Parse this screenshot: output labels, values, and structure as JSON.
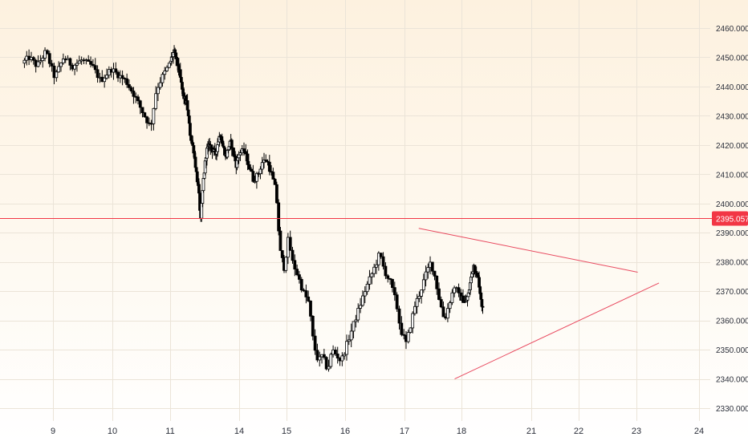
{
  "chart_data": {
    "type": "candlestick",
    "instrument_note": "",
    "y_axis": {
      "range": [
        2325,
        2465
      ],
      "ticks": [
        2330,
        2340,
        2350,
        2360,
        2370,
        2380,
        2390,
        2400,
        2410,
        2420,
        2430,
        2440,
        2450,
        2460
      ],
      "tick_labels": [
        "2330.000",
        "2340.000",
        "2350.000",
        "2360.000",
        "2370.000",
        "2380.000",
        "2390.000",
        "2400.000",
        "2410.000",
        "2420.000",
        "2430.000",
        "2440.000",
        "2450.000",
        "2460.000"
      ]
    },
    "x_axis": {
      "range": [
        8.5,
        24.2
      ],
      "ticks": [
        9,
        10,
        11,
        14,
        15,
        16,
        17,
        18,
        21,
        22,
        23,
        24
      ],
      "tick_labels": [
        "9",
        "10",
        "11",
        "14",
        "15",
        "16",
        "17",
        "18",
        "21",
        "22",
        "23",
        "24"
      ]
    },
    "grid": true,
    "current_price": {
      "value": 2395.057,
      "label": "2395.057",
      "color": "#f23645"
    },
    "candle_colors": {
      "up": "#ffffff",
      "down": "#000000",
      "wick": "#000000"
    },
    "trendlines": [
      {
        "name": "upper",
        "color": "#e8495f",
        "from": {
          "x": 17.25,
          "y": 2391.5
        },
        "to": {
          "x": 23.02,
          "y": 2376.5
        }
      },
      {
        "name": "lower",
        "color": "#e8495f",
        "from": {
          "x": 17.88,
          "y": 2340.0
        },
        "to": {
          "x": 23.36,
          "y": 2372.8
        }
      }
    ],
    "price_path": [
      [
        8.5,
        2448
      ],
      [
        8.62,
        2450
      ],
      [
        8.75,
        2447
      ],
      [
        8.9,
        2452
      ],
      [
        9.05,
        2443
      ],
      [
        9.2,
        2450
      ],
      [
        9.35,
        2447
      ],
      [
        9.5,
        2449
      ],
      [
        9.68,
        2447
      ],
      [
        9.82,
        2442
      ],
      [
        10.0,
        2446
      ],
      [
        10.12,
        2444
      ],
      [
        10.25,
        2442
      ],
      [
        10.4,
        2437
      ],
      [
        10.55,
        2431
      ],
      [
        10.68,
        2426
      ],
      [
        10.78,
        2439
      ],
      [
        10.9,
        2444
      ],
      [
        11.05,
        2449
      ],
      [
        11.18,
        2452
      ],
      [
        11.3,
        2449
      ],
      [
        11.42,
        2445
      ],
      [
        11.58,
        2437
      ],
      [
        11.75,
        2434
      ],
      [
        11.9,
        2423
      ],
      [
        12.05,
        2418
      ],
      [
        12.15,
        2411
      ],
      [
        12.25,
        2405
      ],
      [
        12.35,
        2394
      ],
      [
        12.45,
        2407
      ],
      [
        12.6,
        2418
      ],
      [
        12.75,
        2420
      ],
      [
        12.9,
        2418
      ],
      [
        13.0,
        2417
      ],
      [
        13.1,
        2421
      ],
      [
        13.2,
        2424
      ],
      [
        13.3,
        2420
      ],
      [
        13.45,
        2416
      ],
      [
        13.55,
        2419
      ],
      [
        13.65,
        2421
      ],
      [
        13.78,
        2417
      ],
      [
        13.9,
        2413
      ],
      [
        14.0,
        2417
      ],
      [
        14.12,
        2418
      ],
      [
        14.22,
        2413
      ],
      [
        14.32,
        2408
      ],
      [
        14.42,
        2410
      ],
      [
        14.5,
        2414
      ],
      [
        14.6,
        2415
      ],
      [
        14.7,
        2410
      ],
      [
        14.8,
        2404
      ],
      [
        14.88,
        2384
      ],
      [
        14.97,
        2378
      ],
      [
        15.05,
        2388
      ],
      [
        15.12,
        2380
      ],
      [
        15.2,
        2376
      ],
      [
        15.3,
        2370
      ],
      [
        15.4,
        2366
      ],
      [
        15.48,
        2352
      ],
      [
        15.56,
        2346
      ],
      [
        15.63,
        2348
      ],
      [
        15.72,
        2343
      ],
      [
        15.8,
        2350
      ],
      [
        15.88,
        2348
      ],
      [
        15.95,
        2346
      ],
      [
        16.05,
        2352
      ],
      [
        16.15,
        2358
      ],
      [
        16.25,
        2364
      ],
      [
        16.35,
        2370
      ],
      [
        16.45,
        2375
      ],
      [
        16.55,
        2380
      ],
      [
        16.6,
        2383
      ],
      [
        16.68,
        2377
      ],
      [
        16.78,
        2373
      ],
      [
        16.88,
        2366
      ],
      [
        16.95,
        2357
      ],
      [
        17.05,
        2352
      ],
      [
        17.12,
        2358
      ],
      [
        17.2,
        2365
      ],
      [
        17.3,
        2370
      ],
      [
        17.38,
        2375
      ],
      [
        17.48,
        2380
      ],
      [
        17.55,
        2375
      ],
      [
        17.62,
        2368
      ],
      [
        17.72,
        2360
      ],
      [
        17.82,
        2367
      ],
      [
        17.9,
        2372
      ],
      [
        17.98,
        2368
      ],
      [
        18.1,
        2367
      ],
      [
        18.2,
        2366
      ],
      [
        18.32,
        2369
      ],
      [
        18.42,
        2374
      ],
      [
        18.55,
        2379
      ],
      [
        18.65,
        2376
      ],
      [
        18.75,
        2374
      ],
      [
        18.85,
        2368
      ],
      [
        18.92,
        2364
      ]
    ]
  },
  "price_axis": {
    "current_label": "2395.057"
  }
}
